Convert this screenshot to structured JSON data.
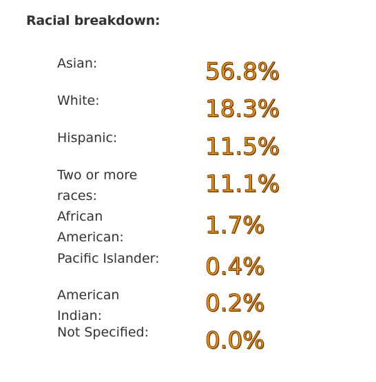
{
  "title": "Racial breakdown:",
  "rows": [
    {
      "label": "Asian:",
      "value": "56.8%"
    },
    {
      "label": "White:",
      "value": "18.3%"
    },
    {
      "label": "Hispanic:",
      "value": "11.5%"
    },
    {
      "label": "Two or more races:",
      "value": "11.1%"
    },
    {
      "label": "African American:",
      "value": "1.7%"
    },
    {
      "label": "Pacific Islander:",
      "value": "0.4%"
    },
    {
      "label": "American Indian:",
      "value": "0.2%"
    },
    {
      "label": "Not Specified:",
      "value": "0.0%"
    }
  ]
}
